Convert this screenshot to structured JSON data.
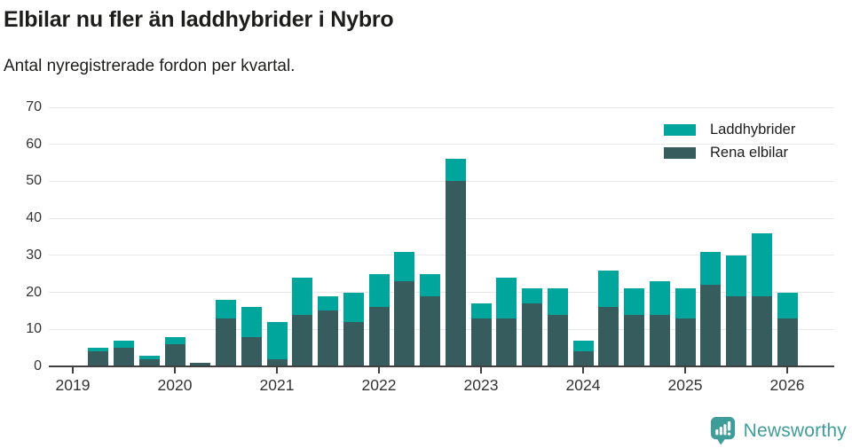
{
  "header": {
    "title": "Elbilar nu fler än laddhybrider i Nybro",
    "subtitle": "Antal nyregistrerade fordon per kvartal."
  },
  "legend": {
    "items": [
      {
        "label": "Laddhybrider",
        "color": "#00a59b"
      },
      {
        "label": "Rena elbilar",
        "color": "#365c5d"
      }
    ]
  },
  "footer": {
    "brand": "Newsworthy",
    "color": "#3f9d99"
  },
  "chart_data": {
    "type": "bar",
    "stacked": true,
    "title": "Elbilar nu fler än laddhybrider i Nybro",
    "subtitle": "Antal nyregistrerade fordon per kvartal.",
    "x": [
      "2019 Q1",
      "2019 Q2",
      "2019 Q3",
      "2019 Q4",
      "2020 Q1",
      "2020 Q2",
      "2020 Q3",
      "2020 Q4",
      "2021 Q1",
      "2021 Q2",
      "2021 Q3",
      "2021 Q4",
      "2022 Q1",
      "2022 Q2",
      "2022 Q3",
      "2022 Q4",
      "2023 Q1",
      "2023 Q2",
      "2023 Q3",
      "2023 Q4",
      "2024 Q1",
      "2024 Q2",
      "2024 Q3",
      "2024 Q4",
      "2025 Q1",
      "2025 Q2",
      "2025 Q3",
      "2025 Q4",
      "2026 Q1"
    ],
    "series": [
      {
        "name": "Rena elbilar",
        "color": "#365c5d",
        "stack_position": "bottom",
        "values": [
          0,
          4,
          5,
          2,
          6,
          1,
          13,
          8,
          2,
          14,
          15,
          12,
          16,
          23,
          19,
          50,
          13,
          13,
          17,
          14,
          4,
          16,
          14,
          14,
          13,
          22,
          19,
          19,
          13
        ]
      },
      {
        "name": "Laddhybrider",
        "color": "#00a59b",
        "stack_position": "top",
        "values": [
          0,
          1,
          2,
          1,
          2,
          0,
          5,
          8,
          10,
          10,
          4,
          8,
          9,
          8,
          6,
          6,
          4,
          11,
          4,
          7,
          3,
          10,
          7,
          9,
          8,
          9,
          11,
          17,
          7
        ]
      }
    ],
    "totals": [
      0,
      5,
      7,
      3,
      8,
      1,
      18,
      16,
      12,
      24,
      19,
      20,
      25,
      31,
      25,
      56,
      17,
      24,
      21,
      21,
      7,
      26,
      21,
      23,
      21,
      31,
      30,
      36,
      20
    ],
    "ylim": [
      0,
      70
    ],
    "yticks": [
      0,
      10,
      20,
      30,
      40,
      50,
      60,
      70
    ],
    "xticks": [
      "2019",
      "2020",
      "2021",
      "2022",
      "2023",
      "2024",
      "2025",
      "2026"
    ],
    "grid": true,
    "legend_position": "top-right"
  }
}
